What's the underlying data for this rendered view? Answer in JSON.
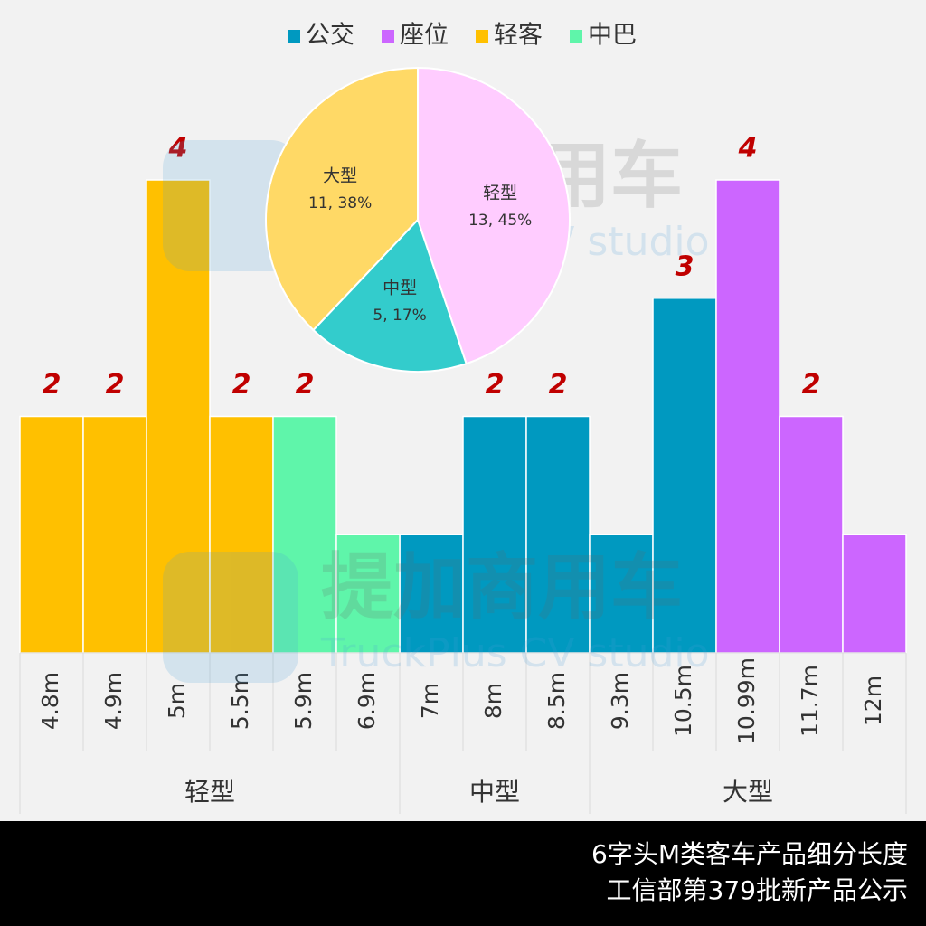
{
  "chart_data": [
    {
      "type": "bar",
      "legend": "top",
      "groups": [
        {
          "label": "轻型",
          "categories": [
            "4.8m",
            "4.9m",
            "5m",
            "5.5m",
            "5.9m",
            "6.9m"
          ]
        },
        {
          "label": "中型",
          "categories": [
            "7m",
            "8m",
            "8.5m"
          ]
        },
        {
          "label": "大型",
          "categories": [
            "9.3m",
            "10.5m",
            "10.99m",
            "11.7m",
            "12m"
          ]
        }
      ],
      "series": [
        {
          "name": "公交",
          "color": "#0099c0",
          "values": [
            null,
            null,
            null,
            null,
            null,
            null,
            1,
            2,
            2,
            1,
            3,
            null,
            null,
            null
          ],
          "value_labels": [
            null,
            null,
            null,
            null,
            null,
            null,
            null,
            "2",
            "2",
            null,
            "3",
            null,
            null,
            null
          ]
        },
        {
          "name": "座位",
          "color": "#cc66ff",
          "values": [
            null,
            null,
            null,
            null,
            null,
            null,
            null,
            null,
            null,
            null,
            null,
            4,
            2,
            1
          ],
          "value_labels": [
            null,
            null,
            null,
            null,
            null,
            null,
            null,
            null,
            null,
            null,
            null,
            "4",
            "2",
            null
          ]
        },
        {
          "name": "轻客",
          "color": "#ffc000",
          "values": [
            2,
            2,
            4,
            2,
            null,
            null,
            null,
            null,
            null,
            null,
            null,
            null,
            null,
            null
          ],
          "value_labels": [
            "2",
            "2",
            "4",
            "2",
            null,
            null,
            null,
            null,
            null,
            null,
            null,
            null,
            null,
            null
          ]
        },
        {
          "name": "中巴",
          "color": "#5ff5aa",
          "values": [
            null,
            null,
            null,
            null,
            2,
            1,
            null,
            null,
            null,
            null,
            null,
            null,
            null,
            null
          ],
          "value_labels": [
            null,
            null,
            null,
            null,
            "2",
            null,
            null,
            null,
            null,
            null,
            null,
            null,
            null,
            null
          ]
        }
      ],
      "ylim": [
        0,
        4
      ]
    },
    {
      "type": "pie",
      "categories": [
        "轻型",
        "中型",
        "大型"
      ],
      "values": [
        13,
        5,
        11
      ],
      "value_labels": [
        "13, 45%",
        "5, 17%",
        "11, 38%"
      ],
      "colors": [
        "#ffccff",
        "#33cccc",
        "#ffd966"
      ]
    }
  ],
  "watermark": {
    "title": "提加商用车",
    "subtitle": "TruckPlus CV studio"
  },
  "footer": {
    "line1": "6字头M类客车产品细分长度",
    "line2": "工信部第379批新产品公示"
  }
}
